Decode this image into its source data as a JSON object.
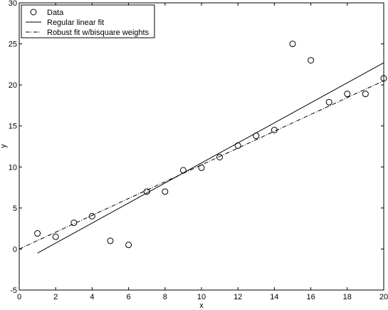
{
  "chart_data": {
    "type": "scatter",
    "title": "",
    "xlabel": "x",
    "ylabel": "y",
    "xlim": [
      0,
      20
    ],
    "ylim": [
      -5,
      30
    ],
    "xticks": [
      0,
      2,
      4,
      6,
      8,
      10,
      12,
      14,
      16,
      18,
      20
    ],
    "yticks": [
      -5,
      0,
      5,
      10,
      15,
      20,
      25,
      30
    ],
    "grid": false,
    "legend_position": "top-left",
    "series": [
      {
        "name": "Data",
        "kind": "markers",
        "marker": "circle",
        "x": [
          1,
          2,
          3,
          4,
          5,
          6,
          7,
          8,
          9,
          10,
          11,
          12,
          13,
          14,
          15,
          16,
          17,
          18,
          19,
          20
        ],
        "y": [
          1.9,
          1.5,
          3.2,
          4.0,
          1.0,
          0.5,
          7.0,
          7.0,
          9.6,
          9.9,
          11.2,
          12.6,
          13.8,
          14.5,
          25.0,
          23.0,
          17.9,
          18.9,
          18.9,
          20.8
        ]
      },
      {
        "name": "Regular linear fit",
        "kind": "line",
        "style": "solid",
        "x": [
          1,
          20
        ],
        "y": [
          -0.5,
          22.7
        ]
      },
      {
        "name": "Robust fit w/bisquare weights",
        "kind": "line",
        "style": "dashdot",
        "x": [
          0,
          20
        ],
        "y": [
          0.0,
          20.5
        ]
      }
    ]
  }
}
